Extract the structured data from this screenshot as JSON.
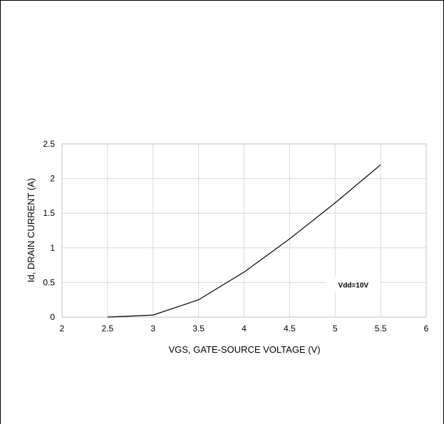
{
  "chart_data": {
    "type": "line",
    "title": "",
    "xlabel": "VGS, GATE-SOURCE VOLTAGE (V)",
    "ylabel": "Id, DRAIN CURRENT (A)",
    "xlim": [
      2,
      6
    ],
    "ylim": [
      0,
      2.5
    ],
    "xticks": [
      2,
      2.5,
      3,
      3.5,
      4,
      4.5,
      5,
      5.5,
      6
    ],
    "yticks": [
      0,
      0.5,
      1,
      1.5,
      2,
      2.5
    ],
    "x_tick_labels": [
      "2",
      "2.5",
      "3",
      "3.5",
      "4",
      "4.5",
      "5",
      "5.5",
      "6"
    ],
    "y_tick_labels": [
      "0",
      "0.5",
      "1",
      "1.5",
      "2",
      "2.5"
    ],
    "grid": true,
    "series": [
      {
        "x": [
          2.5,
          3,
          3.5,
          4,
          4.5,
          5,
          5.5
        ],
        "y": [
          0,
          0.03,
          0.25,
          0.65,
          1.13,
          1.65,
          2.2
        ]
      }
    ],
    "annotations": [
      {
        "text": "Vdd=10V",
        "x": 5.2,
        "y": 0.47
      }
    ],
    "colors": {
      "line": "#000000",
      "grid": "#d9d9d9",
      "axis": "#bfbfbf"
    }
  }
}
